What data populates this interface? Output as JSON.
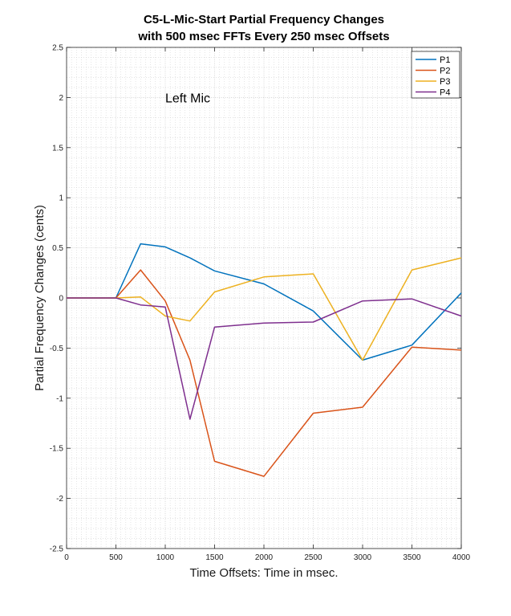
{
  "chart_data": {
    "type": "line",
    "title_line1": "C5-L-Mic-Start Partial Frequency Changes",
    "title_line2": "with 500 msec FFTs Every 250 msec Offsets",
    "xlabel": "Time Offsets: Time in msec.",
    "ylabel": "Partial Frequency Changes (cents)",
    "annotation": "Left Mic",
    "xlim": [
      0,
      4000
    ],
    "ylim": [
      -2.5,
      2.5
    ],
    "xticks": [
      0,
      500,
      1000,
      1500,
      2000,
      2500,
      3000,
      3500,
      4000
    ],
    "xtick_labels": [
      "0",
      "500",
      "1000",
      "1500",
      "2000",
      "2500",
      "3000",
      "3500",
      "4000"
    ],
    "yticks": [
      -2.5,
      -2,
      -1.5,
      -1,
      -0.5,
      0,
      0.5,
      1,
      1.5,
      2,
      2.5
    ],
    "ytick_labels": [
      "-2.5",
      "-2",
      "-1.5",
      "-1",
      "-0.5",
      "0",
      "0.5",
      "1",
      "1.5",
      "2",
      "2.5"
    ],
    "grid": true,
    "minor_grid": true,
    "legend_position": "top-right",
    "x": [
      0,
      250,
      500,
      750,
      1000,
      1250,
      1500,
      2000,
      2500,
      3000,
      3500,
      4000
    ],
    "series": [
      {
        "name": "P1",
        "color": "#0072BD",
        "values": [
          0,
          0,
          0,
          0.54,
          0.51,
          0.4,
          0.27,
          0.14,
          -0.13,
          -0.62,
          -0.47,
          0.05
        ]
      },
      {
        "name": "P2",
        "color": "#D95319",
        "values": [
          0,
          0,
          0,
          0.28,
          -0.03,
          -0.62,
          -1.63,
          -1.78,
          -1.15,
          -1.09,
          -0.49,
          -0.52
        ]
      },
      {
        "name": "P3",
        "color": "#EDB120",
        "values": [
          0,
          0,
          0,
          0.01,
          -0.18,
          -0.23,
          0.06,
          0.21,
          0.24,
          -0.62,
          0.28,
          0.4
        ]
      },
      {
        "name": "P4",
        "color": "#7E2F8E",
        "values": [
          0,
          0,
          0,
          -0.07,
          -0.09,
          -1.21,
          -0.29,
          -0.25,
          -0.24,
          -0.03,
          -0.01,
          -0.18
        ]
      }
    ]
  }
}
